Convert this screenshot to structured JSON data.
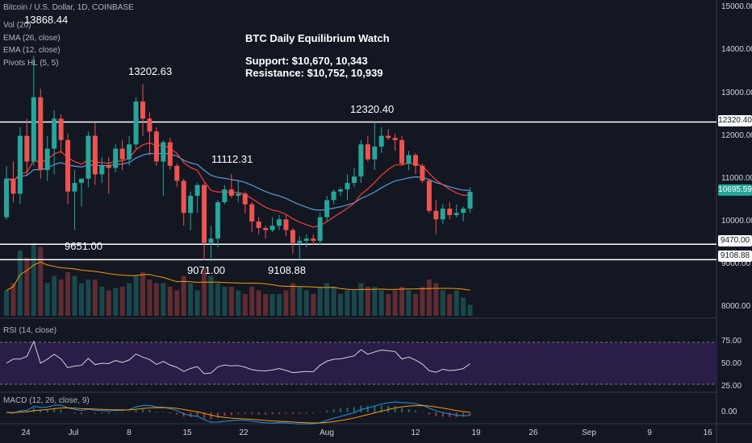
{
  "header": {
    "symbol": "Bitcoin / U.S. Dollar, 1D, COINBASE",
    "indicators": [
      "Vol (20)",
      "EMA (26, close)",
      "EMA (12, close)",
      "Pivots HL (5, 5)"
    ]
  },
  "notes": {
    "title": "BTC Daily Equilibrium Watch",
    "support": "Support: $10,670, 10,343",
    "resistance": "Resistance: $10,752, 10,939"
  },
  "pivot_labels": [
    "13868.44",
    "13202.63",
    "11112.31",
    "12320.40",
    "9651.00",
    "9071.00",
    "9108.88"
  ],
  "price_axis": [
    "15000.00",
    "14000.00",
    "13000.00",
    "12000.00",
    "11000.00",
    "10000.00",
    "9000.00",
    "8000.00"
  ],
  "price_tags": {
    "resistance": "12320.40",
    "current": "10695.59",
    "support_1": "9470.00",
    "support_2": "9108.88"
  },
  "rsi": {
    "label": "RSI (14, close)",
    "levels": [
      "75.00",
      "50.00",
      "25.00"
    ]
  },
  "macd": {
    "label": "MACD (12, 26, close, 9)",
    "level": "0.00"
  },
  "time_axis": [
    "24",
    "Jul",
    "8",
    "15",
    "22",
    "Aug",
    "12",
    "19",
    "26",
    "Sep",
    "9",
    "16"
  ],
  "colors": {
    "up": "#26a69a",
    "down": "#ef5350",
    "ema_fast": "#ff3b3b",
    "ema_slow": "#5b9bd5",
    "rsi_band": "#2a1d47",
    "background": "#131722"
  },
  "chart_data": {
    "type": "candlestick",
    "ohlc": [
      [
        10100,
        11300,
        10050,
        11000
      ],
      [
        11000,
        11400,
        10450,
        10650
      ],
      [
        10650,
        12200,
        10400,
        12000
      ],
      [
        12000,
        12400,
        11100,
        11400
      ],
      [
        11400,
        13868,
        11300,
        12900
      ],
      [
        12900,
        13100,
        11000,
        11200
      ],
      [
        11200,
        12000,
        10950,
        11700
      ],
      [
        11700,
        12600,
        11100,
        12400
      ],
      [
        12400,
        12500,
        11600,
        11900
      ],
      [
        11900,
        12050,
        10400,
        10700
      ],
      [
        10700,
        11200,
        9800,
        10900
      ],
      [
        10900,
        11000,
        10350,
        11000
      ],
      [
        11000,
        12100,
        10800,
        12000
      ],
      [
        12000,
        12300,
        10850,
        11100
      ],
      [
        11100,
        11500,
        10900,
        11300
      ],
      [
        11300,
        11500,
        10650,
        11250
      ],
      [
        11250,
        11800,
        11150,
        11700
      ],
      [
        11700,
        11900,
        11200,
        11450
      ],
      [
        11450,
        12000,
        11300,
        11800
      ],
      [
        11800,
        12900,
        11700,
        12800
      ],
      [
        12800,
        13202,
        12000,
        12400
      ],
      [
        12400,
        12550,
        11550,
        12100
      ],
      [
        12100,
        12200,
        11300,
        11400
      ],
      [
        11400,
        11900,
        10600,
        11850
      ],
      [
        11850,
        11950,
        11200,
        11300
      ],
      [
        11300,
        11350,
        10800,
        10950
      ],
      [
        10950,
        11000,
        9900,
        10200
      ],
      [
        10200,
        10700,
        9800,
        10600
      ],
      [
        10600,
        10900,
        10200,
        10850
      ],
      [
        10850,
        10900,
        9100,
        9500
      ],
      [
        9500,
        9900,
        9071,
        9600
      ],
      [
        9600,
        10500,
        9400,
        10450
      ],
      [
        10450,
        10850,
        10400,
        10750
      ],
      [
        10750,
        11112,
        10550,
        10600
      ],
      [
        10600,
        10950,
        10450,
        10650
      ],
      [
        10650,
        10700,
        10200,
        10400
      ],
      [
        10400,
        10450,
        9750,
        10000
      ],
      [
        10000,
        10100,
        9700,
        9850
      ],
      [
        9850,
        9900,
        9600,
        9800
      ],
      [
        9800,
        10100,
        9750,
        9900
      ],
      [
        9900,
        10150,
        9800,
        10050
      ],
      [
        10050,
        10150,
        9650,
        9800
      ],
      [
        9800,
        9850,
        9250,
        9500
      ],
      [
        9500,
        9650,
        9108,
        9550
      ],
      [
        9550,
        9700,
        9400,
        9600
      ],
      [
        9600,
        9700,
        9450,
        9550
      ],
      [
        9550,
        10200,
        9450,
        10100
      ],
      [
        10100,
        10600,
        10000,
        10500
      ],
      [
        10500,
        10750,
        10400,
        10700
      ],
      [
        10700,
        10800,
        10600,
        10750
      ],
      [
        10750,
        11100,
        10500,
        10900
      ],
      [
        10900,
        11250,
        10800,
        11050
      ],
      [
        11050,
        11900,
        10900,
        11800
      ],
      [
        11800,
        12000,
        11400,
        11450
      ],
      [
        11450,
        12320,
        11200,
        11750
      ],
      [
        11750,
        12200,
        11600,
        12000
      ],
      [
        12000,
        12150,
        11900,
        11950
      ],
      [
        11950,
        12050,
        11650,
        11900
      ],
      [
        11900,
        12000,
        11300,
        11350
      ],
      [
        11350,
        11650,
        11200,
        11550
      ],
      [
        11550,
        11600,
        11100,
        11300
      ],
      [
        11300,
        11350,
        10900,
        10950
      ],
      [
        10950,
        11000,
        10200,
        10250
      ],
      [
        10250,
        10500,
        9700,
        10050
      ],
      [
        10050,
        10400,
        9950,
        10300
      ],
      [
        10300,
        10450,
        10050,
        10150
      ],
      [
        10150,
        10400,
        10100,
        10200
      ],
      [
        10200,
        10350,
        10000,
        10300
      ],
      [
        10300,
        10800,
        10200,
        10695
      ]
    ],
    "volume": [
      0.35,
      0.45,
      0.9,
      0.8,
      1.0,
      0.95,
      0.45,
      0.55,
      0.5,
      0.6,
      0.55,
      0.45,
      0.5,
      0.5,
      0.4,
      0.35,
      0.38,
      0.4,
      0.45,
      0.55,
      0.6,
      0.5,
      0.45,
      0.45,
      0.4,
      0.35,
      0.55,
      0.45,
      0.35,
      0.65,
      0.55,
      0.45,
      0.4,
      0.4,
      0.35,
      0.3,
      0.4,
      0.35,
      0.3,
      0.3,
      0.3,
      0.35,
      0.45,
      0.4,
      0.35,
      0.3,
      0.4,
      0.45,
      0.4,
      0.3,
      0.35,
      0.35,
      0.45,
      0.4,
      0.4,
      0.35,
      0.3,
      0.35,
      0.4,
      0.35,
      0.3,
      0.4,
      0.5,
      0.45,
      0.35,
      0.3,
      0.35,
      0.25,
      0.15
    ]
  }
}
